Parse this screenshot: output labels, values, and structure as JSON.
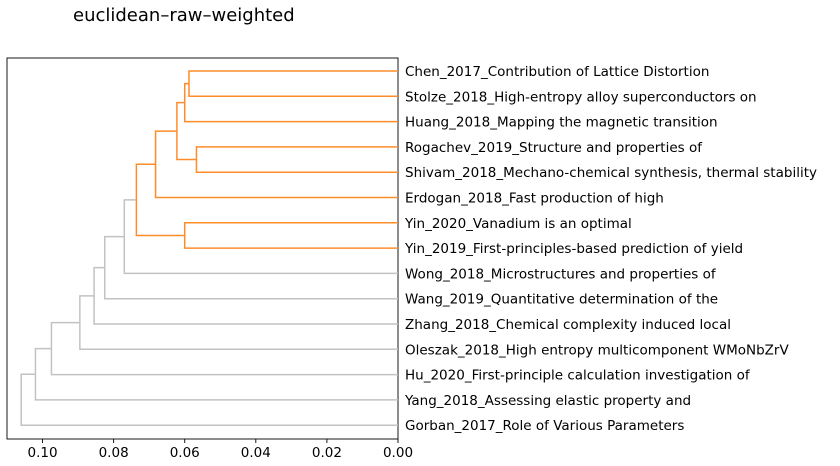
{
  "chart_data": {
    "type": "dendrogram",
    "title": "euclidean–raw–weighted",
    "orientation": "left",
    "xlabel": "",
    "ylabel": "",
    "xlim": [
      0.11,
      0.0
    ],
    "xticks": [
      0.1,
      0.08,
      0.06,
      0.04,
      0.02,
      0.0
    ],
    "xtick_labels": [
      "0.10",
      "0.08",
      "0.06",
      "0.04",
      "0.02",
      "0.00"
    ],
    "grid": false,
    "colors": {
      "cluster": "#ff8c2a",
      "above_threshold": "#c2c2c2",
      "axis": "#000000"
    },
    "leaves": [
      "Chen_2017_Contribution of Lattice Distortion",
      "Stolze_2018_High-entropy alloy superconductors on",
      "Huang_2018_Mapping the magnetic transition",
      "Rogachev_2019_Structure and properties of",
      "Shivam_2018_Mechano-chemical synthesis, thermal stability",
      "Erdogan_2018_Fast production of high",
      "Yin_2020_Vanadium is an optimal",
      "Yin_2019_First-principles-based prediction of yield",
      "Wong_2018_Microstructures and properties of",
      "Wang_2019_Quantitative determination of the",
      "Zhang_2018_Chemical complexity induced local",
      "Oleszak_2018_High entropy multicomponent WMoNbZrV",
      "Hu_2020_First-principle calculation investigation of",
      "Yang_2018_Assessing elastic property and",
      "Gorban_2017_Role of Various Parameters"
    ],
    "merges": [
      {
        "left": 0,
        "right": 1,
        "height": 0.0588,
        "color": "cluster"
      },
      {
        "left": 15,
        "right": 2,
        "height": 0.06,
        "color": "cluster"
      },
      {
        "left": 3,
        "right": 4,
        "height": 0.0567,
        "color": "cluster"
      },
      {
        "left": 16,
        "right": 17,
        "height": 0.0622,
        "color": "cluster"
      },
      {
        "left": 18,
        "right": 5,
        "height": 0.0682,
        "color": "cluster"
      },
      {
        "left": 6,
        "right": 7,
        "height": 0.06,
        "color": "cluster"
      },
      {
        "left": 19,
        "right": 20,
        "height": 0.0736,
        "color": "cluster"
      },
      {
        "left": 21,
        "right": 8,
        "height": 0.077,
        "color": "above_threshold"
      },
      {
        "left": 22,
        "right": 9,
        "height": 0.0825,
        "color": "above_threshold"
      },
      {
        "left": 23,
        "right": 10,
        "height": 0.0855,
        "color": "above_threshold"
      },
      {
        "left": 24,
        "right": 11,
        "height": 0.0895,
        "color": "above_threshold"
      },
      {
        "left": 25,
        "right": 12,
        "height": 0.0975,
        "color": "above_threshold"
      },
      {
        "left": 26,
        "right": 13,
        "height": 0.102,
        "color": "above_threshold"
      },
      {
        "left": 27,
        "right": 14,
        "height": 0.106,
        "color": "above_threshold"
      }
    ]
  }
}
